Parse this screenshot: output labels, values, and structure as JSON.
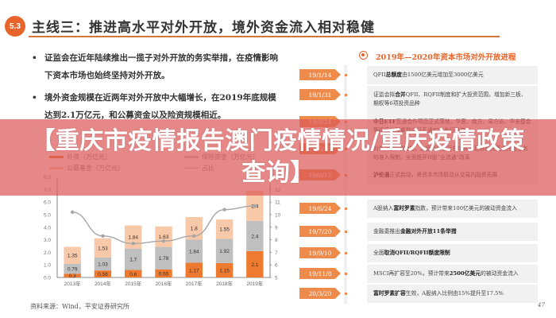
{
  "header": {
    "section_number": "5.3",
    "title": "主线三：推进高水平对外开放，境外资金流入相对稳健"
  },
  "bullets": [
    "证监会在近年陆续推出一揽子对外开放的务实举措，在疫情影响下资本市场也始终坚持对外开放。",
    "境外资金规模在近两年对外开放中大幅增长，在2019年底规模达到2.1万亿元，和公募资金以及险资规模相近。"
  ],
  "chart_data": {
    "type": "bar",
    "stacked": true,
    "categories": [
      "2013年",
      "2014年",
      "2015年",
      "2016年",
      "2017年",
      "2018年",
      "2019年"
    ],
    "series": [
      {
        "name": "外资（万亿元）",
        "color": "#ee7a30",
        "values": [
          0.3,
          0.56,
          0.6,
          0.65,
          1.17,
          1.15,
          2.1
        ]
      },
      {
        "name": "保险资金（万亿元）",
        "color": "#bfbfbf",
        "values": [
          0.79,
          1.03,
          1.7,
          1.78,
          1.84,
          1.92,
          2.4
        ]
      },
      {
        "name": "公募基金（万亿元）",
        "color": "#f8c9a8",
        "values": [
          1.35,
          1.53,
          1.84,
          1.63,
          1.8,
          1.55,
          2.4
        ]
      },
      {
        "name": "占比（%，右轴）",
        "type": "line",
        "color": "#a6a6a6",
        "values": [
          10.2,
          8.3,
          7.7,
          7.9,
          8.3,
          10.4,
          10.7
        ]
      }
    ],
    "left_axis": {
      "min": 0,
      "max": 8,
      "ticks": [
        "0.0",
        "1.0",
        "2.0",
        "3.0",
        "4.0",
        "5.0",
        "6.0",
        "7.0",
        "8.0"
      ]
    },
    "right_axis": {
      "min": 5,
      "max": 13,
      "ticks": [
        "5",
        "6",
        "7",
        "8",
        "9",
        "10",
        "11",
        "12"
      ]
    },
    "legend_position": "top",
    "grid": false
  },
  "legend": {
    "foreign": "外资（万亿元）",
    "insurance": "保险资金（万亿元）",
    "fund": "公募基金（万亿元）",
    "ratio": "占比"
  },
  "source": "资料来源：Wind，平安证券研究所",
  "timeline": {
    "title": "2019年—2020年资本市场对外开放进程",
    "items": [
      {
        "date": "19/1/14",
        "pre": "QFII",
        "bold": "总额度",
        "post": "由1500亿美元增加至3000亿美元"
      },
      {
        "date": "19/1/31",
        "pre": "证监会拟",
        "bold": "合并",
        "post": "QFII、RQFII制度和扩大投资范围，增加新三板、期权等6项投资品种"
      },
      {
        "date": "19/5/24",
        "pre": "",
        "bold": "中日ETF",
        "post": "互通合作项目正式落地，华夏、南方、易方达、华安基金等四家公募拿到中日互通ETF发行批文"
      },
      {
        "date": "19/6/13",
        "pre": "",
        "bold": "",
        "post": "对外开放9项措施，放宽外资银行在华从事证券投资基金托管业务的准入限制，全面推开H股“全流通”改革"
      },
      {
        "date": "19/6/17",
        "pre": "",
        "bold": "沪伦通",
        "post": "正式启动，将资本市场联动从交易内融资拓展"
      },
      {
        "date": "19/6/24",
        "pre": "A股纳入",
        "bold": "富时罗素",
        "post": "指数，预计带来100亿美元的被动资金流入"
      },
      {
        "date": "19/7/20",
        "pre": "金融委推出",
        "bold": "金融对外开放11条举措",
        "post": ""
      },
      {
        "date": "19/9/10",
        "pre": "全面",
        "bold": "取消QFII/RQFII额度限制",
        "post": ""
      },
      {
        "date": "19/11/8",
        "pre": "MSCI再扩容至20%，预计带来",
        "bold": "2500亿美元",
        "post": "的被动资金流入"
      },
      {
        "date": "20/3/20",
        "pre": "",
        "bold": "富时罗素扩容",
        "post": "生效，A股纳入比例由15%提升至17.5%"
      }
    ]
  },
  "page_number": "47",
  "banner": {
    "text": "【重庆市疫情报告澳门疫情情况/重庆疫情政策查询】"
  }
}
